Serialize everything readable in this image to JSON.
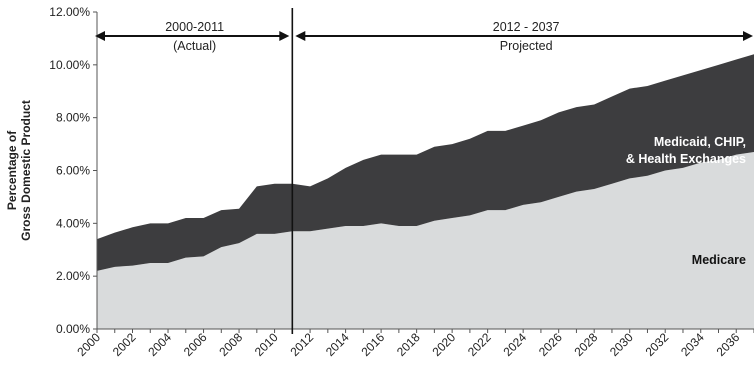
{
  "chart_data": {
    "type": "area",
    "stacked": true,
    "ylabel": [
      "Percentage of",
      "Gross Domestic Product"
    ],
    "ylim": [
      0,
      12
    ],
    "yticks": [
      "0.00%",
      "2.00%",
      "4.00%",
      "6.00%",
      "8.00%",
      "10.00%",
      "12.00%"
    ],
    "xlim": [
      2000,
      2037
    ],
    "xticks": [
      "2000",
      "2002",
      "2004",
      "2006",
      "2008",
      "2010",
      "2012",
      "2014",
      "2016",
      "2018",
      "2020",
      "2022",
      "2024",
      "2026",
      "2028",
      "2030",
      "2032",
      "2034",
      "2036"
    ],
    "x": [
      2000,
      2001,
      2002,
      2003,
      2004,
      2005,
      2006,
      2007,
      2008,
      2009,
      2010,
      2011,
      2012,
      2013,
      2014,
      2015,
      2016,
      2017,
      2018,
      2019,
      2020,
      2021,
      2022,
      2023,
      2024,
      2025,
      2026,
      2027,
      2028,
      2029,
      2030,
      2031,
      2032,
      2033,
      2034,
      2035,
      2036,
      2037
    ],
    "series": [
      {
        "name": "Medicare",
        "color": "#d9dbdc",
        "values": [
          2.2,
          2.35,
          2.4,
          2.5,
          2.5,
          2.7,
          2.75,
          3.1,
          3.25,
          3.6,
          3.6,
          3.7,
          3.7,
          3.8,
          3.9,
          3.9,
          4.0,
          3.9,
          3.9,
          4.1,
          4.2,
          4.3,
          4.5,
          4.5,
          4.7,
          4.8,
          5.0,
          5.2,
          5.3,
          5.5,
          5.7,
          5.8,
          6.0,
          6.1,
          6.3,
          6.4,
          6.6,
          6.7
        ]
      },
      {
        "name": "Medicaid, CHIP, & Health Exchanges",
        "color": "#3d3d3f",
        "values": [
          1.2,
          1.3,
          1.45,
          1.5,
          1.5,
          1.5,
          1.45,
          1.4,
          1.3,
          1.8,
          1.9,
          1.8,
          1.7,
          1.9,
          2.2,
          2.5,
          2.6,
          2.7,
          2.7,
          2.8,
          2.8,
          2.9,
          3.0,
          3.0,
          3.0,
          3.1,
          3.2,
          3.2,
          3.2,
          3.3,
          3.4,
          3.4,
          3.4,
          3.5,
          3.5,
          3.6,
          3.6,
          3.7
        ]
      }
    ],
    "series_labels": {
      "medicaid": [
        "Medicaid, CHIP,",
        "& Health Exchanges"
      ],
      "medicare": "Medicare"
    },
    "annotations": {
      "actual_range": "2000-2011",
      "actual_note": "(Actual)",
      "projected_range": "2012 - 2037",
      "projected_note": "Projected"
    },
    "divider_year": 2011,
    "grid": false,
    "legend": "inline"
  }
}
